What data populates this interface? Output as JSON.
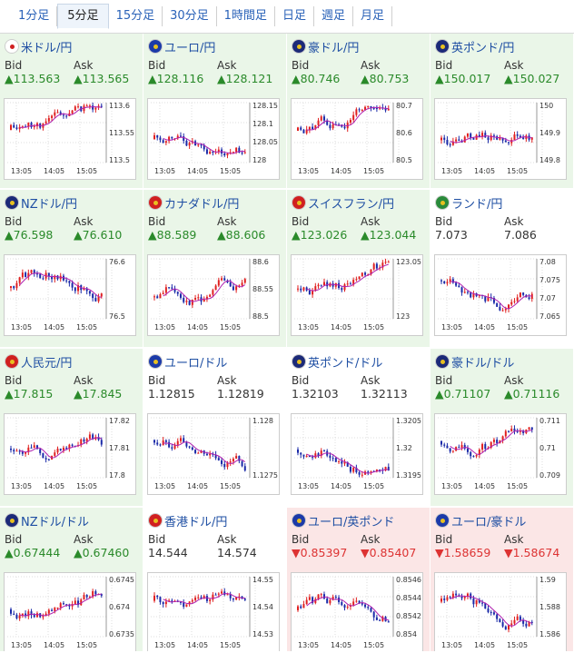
{
  "tabs": [
    {
      "label": "1分足",
      "active": false
    },
    {
      "label": "5分足",
      "active": true
    },
    {
      "label": "15分足",
      "active": false
    },
    {
      "label": "30分足",
      "active": false
    },
    {
      "label": "1時間足",
      "active": false
    },
    {
      "label": "日足",
      "active": false
    },
    {
      "label": "週足",
      "active": false
    },
    {
      "label": "月足",
      "active": false
    }
  ],
  "labels": {
    "bid": "Bid",
    "ask": "Ask"
  },
  "x_ticks": [
    "13:05",
    "14:05",
    "15:05"
  ],
  "pairs": [
    {
      "name": "米ドル/円",
      "flag": "jp-us",
      "bid": "▲113.563",
      "ask": "▲113.565",
      "dir": "up",
      "yticks": [
        "113.6",
        "113.55",
        "113.5"
      ],
      "bg": "green"
    },
    {
      "name": "ユーロ/円",
      "flag": "eu-jp",
      "bid": "▲128.116",
      "ask": "▲128.121",
      "dir": "up",
      "yticks": [
        "128.15",
        "128.1",
        "128.05",
        "128"
      ],
      "bg": "green"
    },
    {
      "name": "豪ドル/円",
      "flag": "au-jp",
      "bid": "▲80.746",
      "ask": "▲80.753",
      "dir": "up",
      "yticks": [
        "80.7",
        "80.6",
        "80.5"
      ],
      "bg": "green"
    },
    {
      "name": "英ポンド/円",
      "flag": "gb-jp",
      "bid": "▲150.017",
      "ask": "▲150.027",
      "dir": "up",
      "yticks": [
        "150",
        "149.9",
        "149.8"
      ],
      "bg": "green"
    },
    {
      "name": "NZドル/円",
      "flag": "nz-jp",
      "bid": "▲76.598",
      "ask": "▲76.610",
      "dir": "up",
      "yticks": [
        "76.6",
        "76.5"
      ],
      "bg": "green"
    },
    {
      "name": "カナダドル/円",
      "flag": "ca-jp",
      "bid": "▲88.589",
      "ask": "▲88.606",
      "dir": "up",
      "yticks": [
        "88.6",
        "88.55",
        "88.5"
      ],
      "bg": "green"
    },
    {
      "name": "スイスフラン/円",
      "flag": "ch-jp",
      "bid": "▲123.026",
      "ask": "▲123.044",
      "dir": "up",
      "yticks": [
        "123.05",
        "123"
      ],
      "bg": "green"
    },
    {
      "name": "ランド/円",
      "flag": "za-jp",
      "bid": "7.073",
      "ask": "7.086",
      "dir": "neutral",
      "yticks": [
        "7.08",
        "7.075",
        "7.07",
        "7.065"
      ],
      "bg": "white"
    },
    {
      "name": "人民元/円",
      "flag": "cn-jp",
      "bid": "▲17.815",
      "ask": "▲17.845",
      "dir": "up",
      "yticks": [
        "17.82",
        "17.81",
        "17.8"
      ],
      "bg": "green"
    },
    {
      "name": "ユーロ/ドル",
      "flag": "eu-us",
      "bid": "1.12815",
      "ask": "1.12819",
      "dir": "neutral",
      "yticks": [
        "1.128",
        "1.1275"
      ],
      "bg": "white"
    },
    {
      "name": "英ポンド/ドル",
      "flag": "gb-us",
      "bid": "1.32103",
      "ask": "1.32113",
      "dir": "neutral",
      "yticks": [
        "1.3205",
        "1.32",
        "1.3195"
      ],
      "bg": "white"
    },
    {
      "name": "豪ドル/ドル",
      "flag": "au-us",
      "bid": "▲0.71107",
      "ask": "▲0.71116",
      "dir": "up",
      "yticks": [
        "0.711",
        "0.71",
        "0.709"
      ],
      "bg": "green"
    },
    {
      "name": "NZドル/ドル",
      "flag": "nz-us",
      "bid": "▲0.67444",
      "ask": "▲0.67460",
      "dir": "up",
      "yticks": [
        "0.6745",
        "0.674",
        "0.6735"
      ],
      "bg": "green"
    },
    {
      "name": "香港ドル/円",
      "flag": "hk-jp",
      "bid": "14.544",
      "ask": "14.574",
      "dir": "neutral",
      "yticks": [
        "14.55",
        "14.54",
        "14.53"
      ],
      "bg": "white"
    },
    {
      "name": "ユーロ/英ポンド",
      "flag": "eu-gb",
      "bid": "▼0.85397",
      "ask": "▼0.85407",
      "dir": "down",
      "yticks": [
        "0.8546",
        "0.8544",
        "0.8542",
        "0.854"
      ],
      "bg": "red"
    },
    {
      "name": "ユーロ/豪ドル",
      "flag": "eu-au",
      "bid": "▼1.58659",
      "ask": "▼1.58674",
      "dir": "down",
      "yticks": [
        "1.59",
        "1.588",
        "1.586"
      ],
      "bg": "red"
    }
  ],
  "colors": {
    "up_text": "#2a8a2a",
    "down_text": "#dd3333",
    "candle_up": "#e02020",
    "candle_down": "#1a2aa8",
    "ma": "#b020b0",
    "ma2": "#1aa0a0"
  }
}
